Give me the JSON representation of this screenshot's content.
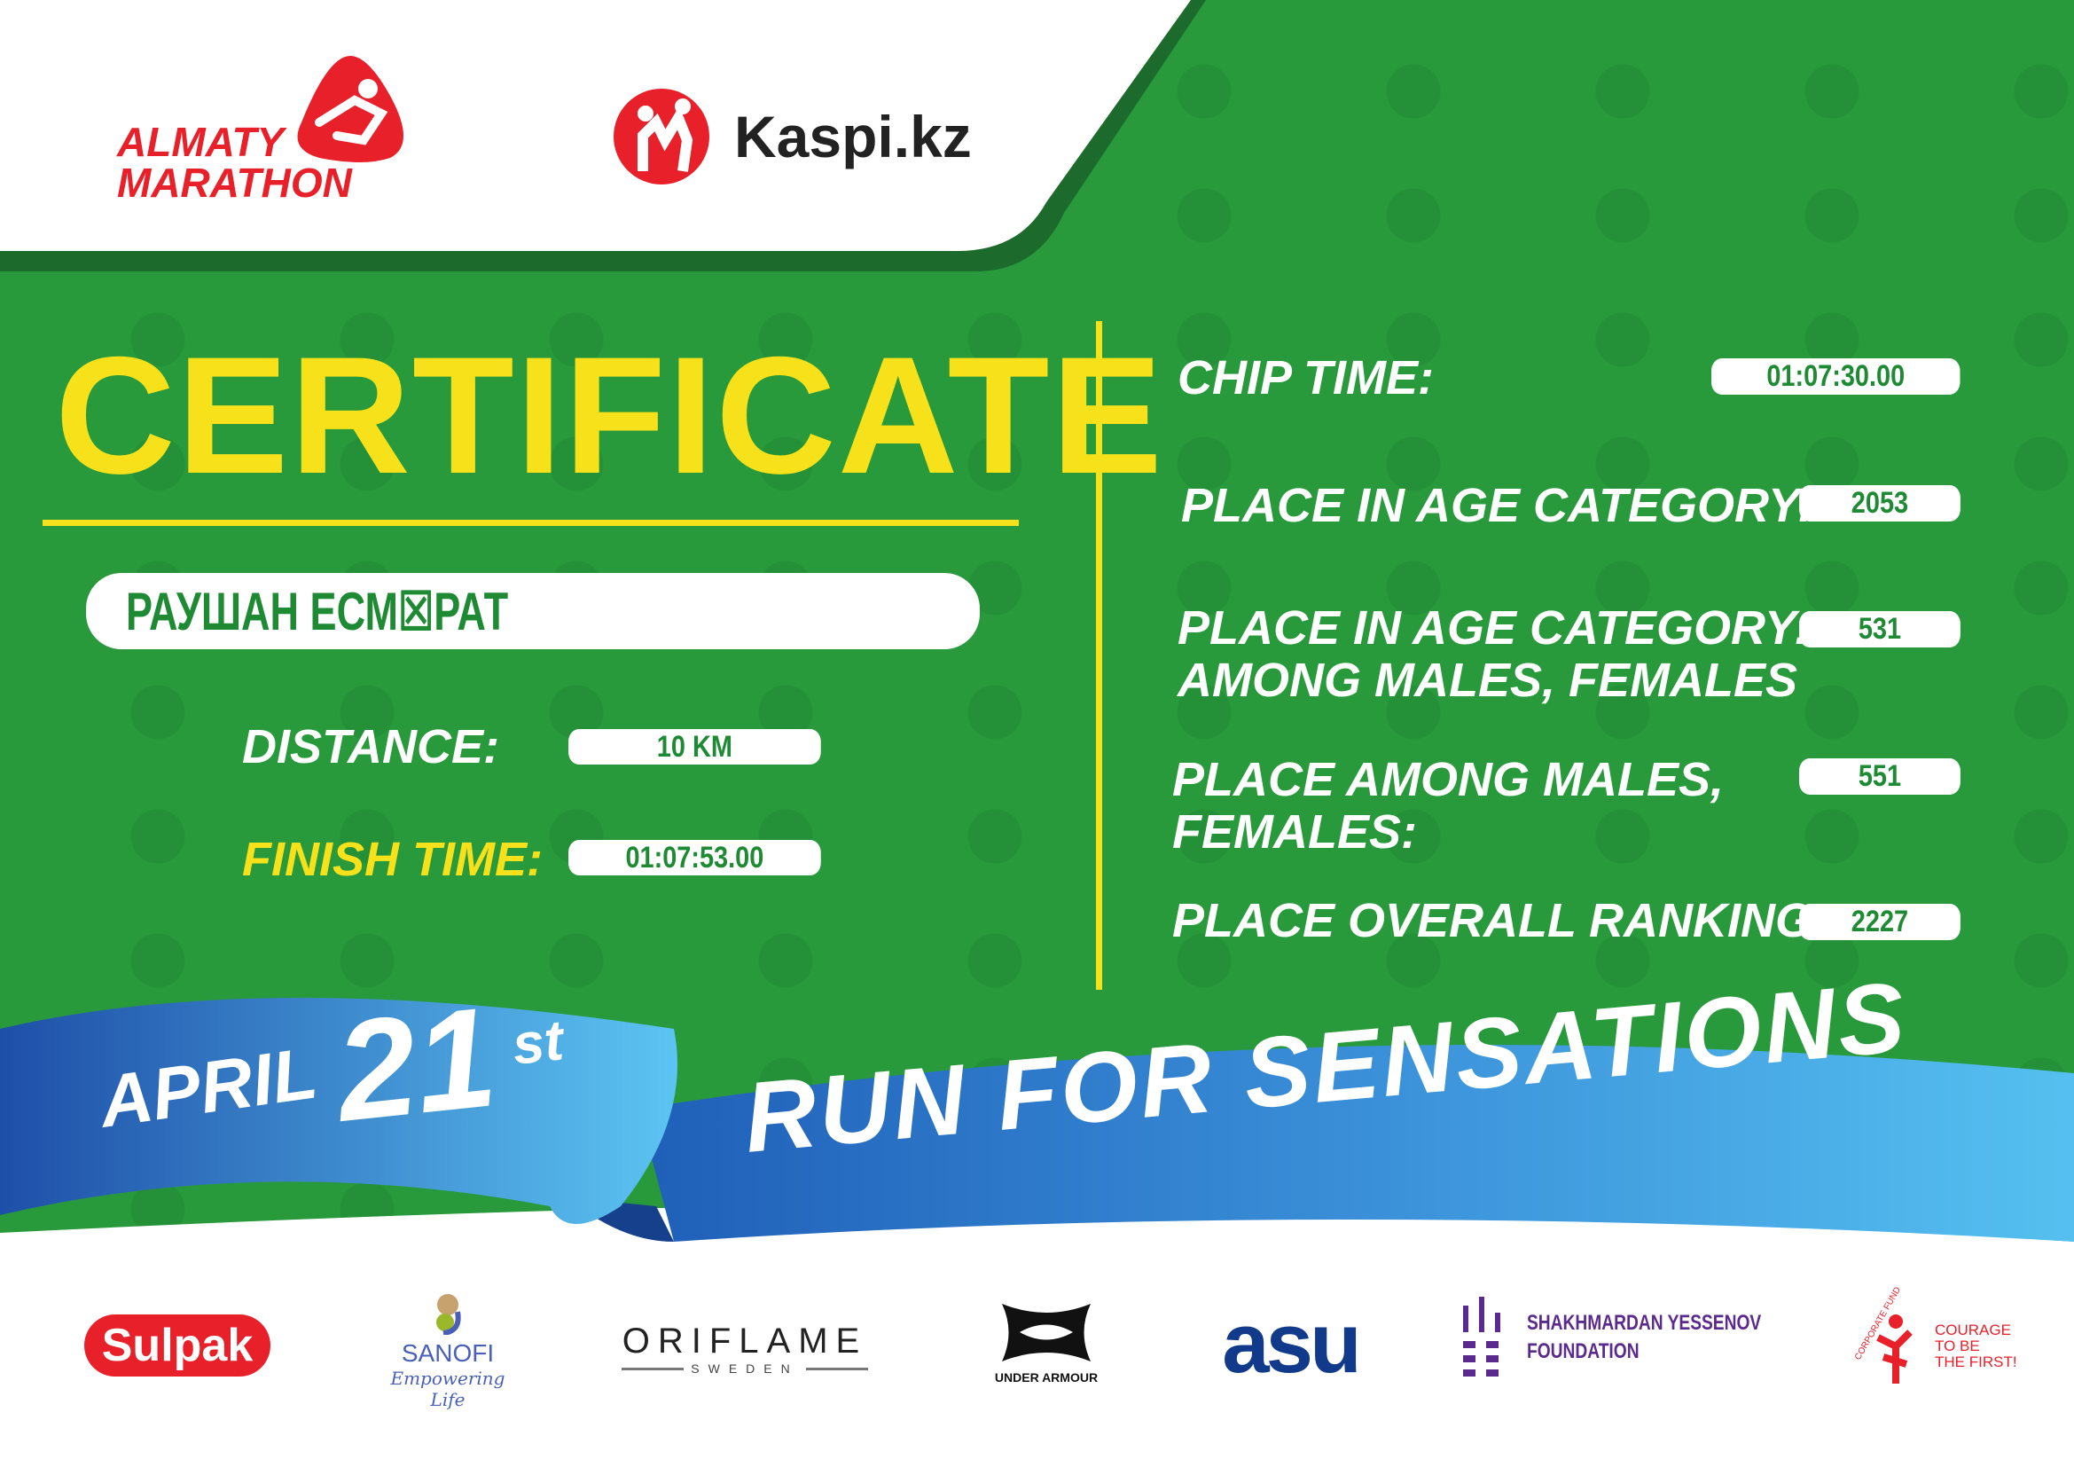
{
  "header": {
    "event_logo_line1": "ALMATY",
    "event_logo_line2": "MARATHON",
    "sponsor_logo": "Kaspi.kz"
  },
  "certificate": {
    "title": "CERTIFICATE",
    "participant_name": "РАУШАН ЕСМ☒РАТ",
    "distance_label": "DISTANCE:",
    "distance_value": "10 KM",
    "finish_time_label": "FINISH TIME:",
    "finish_time_value": "01:07:53.00",
    "chip_time_label": "CHIP TIME:",
    "chip_time_value": "01:07:30.00",
    "age_category_label": "PLACE IN AGE CATEGORY:",
    "age_category_value": "2053",
    "age_category_gender_label_line1": "PLACE IN AGE CATEGORY:",
    "age_category_gender_label_line2": "AMONG MALES, FEMALES",
    "age_category_gender_value": "531",
    "gender_place_label_line1": "PLACE AMONG MALES,",
    "gender_place_label_line2": "FEMALES:",
    "gender_place_value": "551",
    "overall_label": "PLACE OVERALL RANKING:",
    "overall_value": "2227"
  },
  "ribbon": {
    "month": "APRIL",
    "day": "21",
    "suffix": "st",
    "slogan": "RUN FOR SENSATIONS"
  },
  "partners": {
    "sulpak": "Sulpak",
    "sanofi": "SANOFI",
    "sanofi_tagline": "Empowering Life",
    "oriflame": "ORIFLAME",
    "oriflame_sub": "SWEDEN",
    "under_armour": "UNDER ARMOUR",
    "asu": "asu",
    "yessenov_line1": "SHAKHMARDAN YESSENOV",
    "yessenov_line2": "FOUNDATION",
    "courage_arc": "CORPORATE FUND",
    "courage_line1": "COURAGE",
    "courage_line2": "TO BE",
    "courage_line3": "THE FIRST!"
  },
  "colors": {
    "green": "#289a3b",
    "dark_green": "#1d6b2c",
    "yellow": "#f6e11a",
    "red": "#e8202a",
    "blue": "#2f7fd0",
    "light_blue": "#4fb8ee"
  }
}
